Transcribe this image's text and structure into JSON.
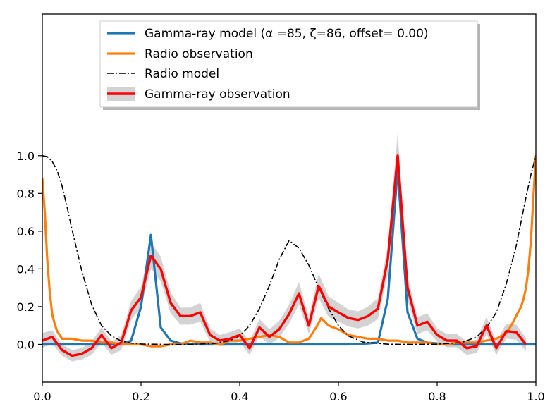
{
  "chart_data": {
    "type": "line",
    "title": "",
    "xlabel": "",
    "ylabel": "",
    "xlim": [
      0.0,
      1.0
    ],
    "ylim": [
      -0.2,
      1.75
    ],
    "grid": false,
    "legend_position": "top-center",
    "x_ticks": [
      {
        "value": 0.0,
        "label": "0.0"
      },
      {
        "value": 0.2,
        "label": "0.2"
      },
      {
        "value": 0.4,
        "label": "0.4"
      },
      {
        "value": 0.6,
        "label": "0.6"
      },
      {
        "value": 0.8,
        "label": "0.8"
      },
      {
        "value": 1.0,
        "label": "1.0"
      }
    ],
    "y_ticks": [
      {
        "value": 0.0,
        "label": "0.0"
      },
      {
        "value": 0.2,
        "label": "0.2"
      },
      {
        "value": 0.4,
        "label": "0.4"
      },
      {
        "value": 0.6,
        "label": "0.6"
      },
      {
        "value": 0.8,
        "label": "0.8"
      },
      {
        "value": 1.0,
        "label": "1.0"
      }
    ],
    "legend": [
      {
        "key": "gamma_model",
        "label": "Gamma-ray model (α =85, ζ=86, offset= 0.00)",
        "color": "#1f77b4",
        "style": "solid"
      },
      {
        "key": "radio_obs",
        "label": "Radio observation",
        "color": "#ff7f0e",
        "style": "solid"
      },
      {
        "key": "radio_model",
        "label": "Radio model",
        "color": "#000000",
        "style": "dashdot"
      },
      {
        "key": "gamma_obs",
        "label": "Gamma-ray observation",
        "color": "#ff0000",
        "style": "errorbar"
      }
    ],
    "series": {
      "gamma_model": {
        "name": "Gamma-ray model",
        "color": "#1f77b4",
        "x": [
          0.0,
          0.16,
          0.18,
          0.2,
          0.22,
          0.24,
          0.26,
          0.28,
          0.32,
          0.36,
          0.45,
          0.55,
          0.62,
          0.66,
          0.68,
          0.7,
          0.72,
          0.74,
          0.76,
          0.78,
          0.82,
          1.0
        ],
        "y": [
          0.0,
          0.0,
          0.02,
          0.2,
          0.58,
          0.09,
          0.02,
          0.005,
          0.0,
          0.0,
          0.0,
          0.0,
          0.0,
          0.005,
          0.01,
          0.24,
          0.93,
          0.17,
          0.03,
          0.01,
          0.0,
          0.0
        ]
      },
      "radio_obs": {
        "name": "Radio observation",
        "color": "#ff7f0e",
        "x": [
          0.0,
          0.005,
          0.01,
          0.015,
          0.02,
          0.025,
          0.03,
          0.04,
          0.06,
          0.08,
          0.1,
          0.12,
          0.14,
          0.16,
          0.18,
          0.2,
          0.22,
          0.24,
          0.26,
          0.28,
          0.3,
          0.32,
          0.34,
          0.36,
          0.38,
          0.4,
          0.42,
          0.44,
          0.46,
          0.48,
          0.5,
          0.52,
          0.54,
          0.555,
          0.565,
          0.58,
          0.6,
          0.62,
          0.64,
          0.66,
          0.68,
          0.7,
          0.72,
          0.74,
          0.76,
          0.78,
          0.8,
          0.82,
          0.84,
          0.86,
          0.88,
          0.9,
          0.92,
          0.94,
          0.95,
          0.96,
          0.97,
          0.975,
          0.98,
          0.985,
          0.99,
          0.995,
          1.0
        ],
        "y": [
          0.88,
          0.7,
          0.45,
          0.28,
          0.16,
          0.11,
          0.07,
          0.03,
          0.03,
          0.02,
          0.02,
          0.01,
          0.01,
          0.0,
          0.0,
          0.0,
          -0.01,
          -0.01,
          0.0,
          0.0,
          0.02,
          0.01,
          0.01,
          0.0,
          0.02,
          0.02,
          0.03,
          0.04,
          0.05,
          0.04,
          0.01,
          0.01,
          0.03,
          0.09,
          0.14,
          0.1,
          0.08,
          0.05,
          0.04,
          0.03,
          0.03,
          0.02,
          0.02,
          0.01,
          0.01,
          0.01,
          0.0,
          0.0,
          0.01,
          0.01,
          0.01,
          0.02,
          0.03,
          0.06,
          0.1,
          0.15,
          0.2,
          0.24,
          0.3,
          0.4,
          0.55,
          0.78,
          1.0
        ]
      },
      "radio_model": {
        "name": "Radio model",
        "color": "#000000",
        "x": [
          0.0,
          0.01,
          0.02,
          0.03,
          0.04,
          0.05,
          0.06,
          0.08,
          0.1,
          0.12,
          0.14,
          0.16,
          0.18,
          0.2,
          0.25,
          0.3,
          0.35,
          0.38,
          0.4,
          0.42,
          0.44,
          0.46,
          0.48,
          0.5,
          0.52,
          0.54,
          0.56,
          0.58,
          0.6,
          0.62,
          0.65,
          0.7,
          0.75,
          0.8,
          0.85,
          0.88,
          0.9,
          0.92,
          0.94,
          0.96,
          0.98,
          0.99,
          1.0
        ],
        "y": [
          1.0,
          0.995,
          0.97,
          0.92,
          0.84,
          0.73,
          0.61,
          0.39,
          0.21,
          0.1,
          0.045,
          0.018,
          0.007,
          0.002,
          0.0,
          0.0,
          0.005,
          0.02,
          0.045,
          0.1,
          0.19,
          0.31,
          0.45,
          0.55,
          0.51,
          0.42,
          0.3,
          0.19,
          0.1,
          0.045,
          0.012,
          0.001,
          0.0,
          0.001,
          0.01,
          0.04,
          0.09,
          0.17,
          0.32,
          0.52,
          0.78,
          0.9,
          1.0
        ]
      },
      "gamma_obs": {
        "name": "Gamma-ray observation",
        "color": "#ff0000",
        "x": [
          0.0,
          0.02,
          0.04,
          0.06,
          0.08,
          0.1,
          0.12,
          0.14,
          0.16,
          0.18,
          0.2,
          0.22,
          0.24,
          0.26,
          0.28,
          0.3,
          0.32,
          0.34,
          0.36,
          0.38,
          0.4,
          0.42,
          0.44,
          0.46,
          0.48,
          0.5,
          0.52,
          0.54,
          0.56,
          0.58,
          0.6,
          0.62,
          0.64,
          0.66,
          0.68,
          0.7,
          0.72,
          0.74,
          0.76,
          0.78,
          0.8,
          0.82,
          0.84,
          0.86,
          0.88,
          0.9,
          0.92,
          0.94,
          0.96,
          0.98
        ],
        "y": [
          0.02,
          0.04,
          -0.03,
          -0.06,
          -0.05,
          -0.02,
          0.05,
          -0.02,
          0.01,
          0.18,
          0.25,
          0.47,
          0.4,
          0.22,
          0.15,
          0.15,
          0.17,
          0.05,
          0.02,
          0.03,
          0.05,
          -0.02,
          0.09,
          0.04,
          0.08,
          0.16,
          0.27,
          0.1,
          0.31,
          0.2,
          0.17,
          0.14,
          0.13,
          0.15,
          0.19,
          0.45,
          1.0,
          0.3,
          0.1,
          0.12,
          0.05,
          0.02,
          0.02,
          -0.02,
          -0.01,
          0.1,
          -0.02,
          0.07,
          0.065,
          0.0
        ],
        "err": [
          0.04,
          0.035,
          0.03,
          0.03,
          0.03,
          0.035,
          0.04,
          0.035,
          0.04,
          0.05,
          0.055,
          0.07,
          0.065,
          0.055,
          0.045,
          0.045,
          0.05,
          0.035,
          0.03,
          0.035,
          0.035,
          0.035,
          0.045,
          0.04,
          0.045,
          0.05,
          0.06,
          0.045,
          0.065,
          0.055,
          0.05,
          0.045,
          0.045,
          0.05,
          0.055,
          0.07,
          0.12,
          0.06,
          0.045,
          0.045,
          0.035,
          0.035,
          0.035,
          0.035,
          0.035,
          0.045,
          0.035,
          0.04,
          0.04,
          0.035
        ]
      }
    }
  }
}
